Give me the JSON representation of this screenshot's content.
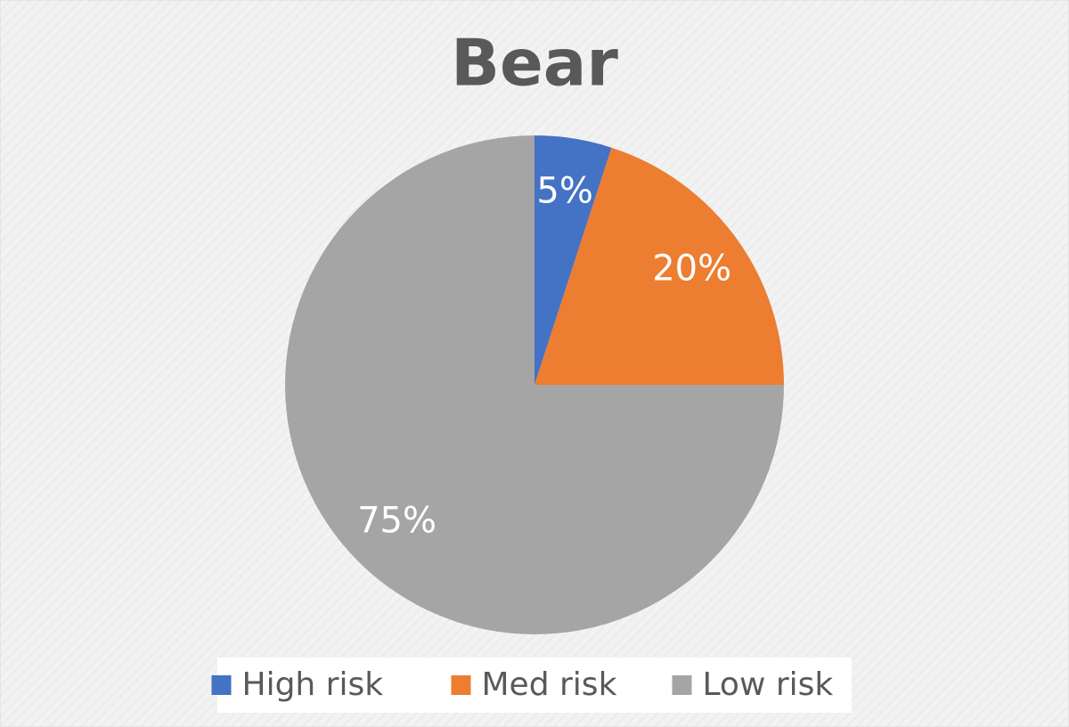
{
  "chart_data": {
    "type": "pie",
    "title": "Bear",
    "categories": [
      "High risk",
      "Med risk",
      "Low risk"
    ],
    "values": [
      5,
      20,
      75
    ],
    "value_labels": [
      "5%",
      "20%",
      "75%"
    ],
    "colors": [
      "#4472c4",
      "#ed7d31",
      "#a5a5a5"
    ],
    "legend": "bottom"
  }
}
